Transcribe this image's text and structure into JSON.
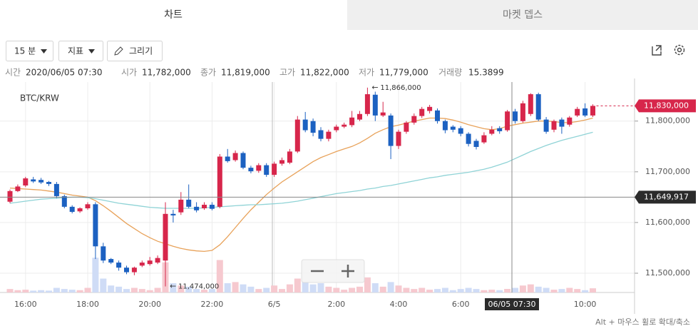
{
  "tabs": {
    "active": "차트",
    "inactive": "마켓 뎁스"
  },
  "toolbar": {
    "interval": "15 분",
    "indicator": "지표",
    "draw": "그리기"
  },
  "info": {
    "items": [
      {
        "label": "시간",
        "value": "2020/06/05 07:30"
      },
      {
        "label": "시가",
        "value": "11,782,000"
      },
      {
        "label": "종가",
        "value": "11,819,000"
      },
      {
        "label": "고가",
        "value": "11,822,000"
      },
      {
        "label": "저가",
        "value": "11,779,000"
      },
      {
        "label": "거래량",
        "value": "15.3899"
      }
    ]
  },
  "footer": "Alt + 마우스 휠로 확대/축소",
  "chart_data": {
    "type": "candlestick",
    "title": "BTC/KRW",
    "categories": [
      null,
      null,
      "16:00",
      null,
      null,
      null,
      null,
      null,
      null,
      null,
      "18:00",
      null,
      null,
      null,
      null,
      null,
      null,
      null,
      "20:00",
      null,
      null,
      null,
      null,
      null,
      null,
      null,
      "22:00",
      null,
      null,
      null,
      null,
      null,
      null,
      null,
      "6/5",
      null,
      null,
      null,
      null,
      null,
      null,
      null,
      "2:00",
      null,
      null,
      null,
      null,
      null,
      null,
      null,
      "4:00",
      null,
      null,
      null,
      null,
      null,
      null,
      null,
      "6:00",
      null,
      null,
      null,
      null,
      null,
      null,
      null,
      null,
      null,
      null,
      null,
      null,
      null,
      null,
      null,
      "10:00",
      null
    ],
    "open": [
      11641000,
      11662000,
      11673000,
      11685000,
      11684000,
      11680000,
      11676000,
      11652000,
      11631000,
      11622000,
      11628000,
      11636000,
      11553000,
      11528000,
      11521000,
      11511000,
      11502000,
      11515000,
      11518000,
      11521000,
      11525000,
      11617000,
      11620000,
      11645000,
      11631000,
      11628000,
      11635000,
      11631000,
      11730000,
      11723000,
      11737000,
      11708000,
      11702000,
      11713000,
      11694000,
      11716000,
      11718000,
      11740000,
      11803000,
      11800000,
      11782000,
      11765000,
      11782000,
      11789000,
      11792000,
      11803000,
      11814000,
      11852000,
      11811000,
      11811000,
      11751000,
      11779000,
      11797000,
      11810000,
      11820000,
      11821000,
      11800000,
      11789000,
      11786000,
      11775000,
      11761000,
      11758000,
      11775000,
      11786000,
      11782000,
      11819000,
      11800000,
      11814000,
      11853000,
      11803000,
      11783000,
      11803000,
      11793000,
      11811000,
      11825000,
      11811000
    ],
    "high": [
      11665000,
      11675000,
      11690000,
      11690000,
      11688000,
      11682000,
      11680000,
      11655000,
      11634000,
      11630000,
      11640000,
      11640000,
      11560000,
      11530000,
      11525000,
      11515000,
      11513000,
      11525000,
      11532000,
      11535000,
      11640000,
      11625000,
      11660000,
      11675000,
      11640000,
      11640000,
      11640000,
      11735000,
      11745000,
      11742000,
      11740000,
      11712000,
      11717000,
      11717000,
      11720000,
      11728000,
      11745000,
      11810000,
      11818000,
      11805000,
      11788000,
      11783000,
      11793000,
      11797000,
      11820000,
      11820000,
      11866000,
      11858000,
      11838000,
      11815000,
      11783000,
      11800000,
      11815000,
      11828000,
      11832000,
      11825000,
      11803000,
      11792000,
      11790000,
      11778000,
      11765000,
      11778000,
      11790000,
      11790000,
      11822000,
      11824000,
      11840000,
      11855000,
      11856000,
      11808000,
      11803000,
      11807000,
      11810000,
      11828000,
      11835000,
      11833000
    ],
    "low": [
      11638000,
      11660000,
      11670000,
      11678000,
      11676000,
      11672000,
      11648000,
      11628000,
      11618000,
      11619000,
      11625000,
      11528000,
      11520000,
      11518000,
      11505000,
      11498000,
      11496000,
      11512000,
      11515000,
      11518000,
      11474000,
      11600000,
      11615000,
      11628000,
      11620000,
      11625000,
      11624000,
      11628000,
      11718000,
      11720000,
      11705000,
      11697000,
      11698000,
      11690000,
      11690000,
      11712000,
      11715000,
      11737000,
      11778000,
      11770000,
      11760000,
      11760000,
      11778000,
      11786000,
      11788000,
      11800000,
      11810000,
      11800000,
      11808000,
      11725000,
      11745000,
      11775000,
      11793000,
      11806000,
      11815000,
      11795000,
      11776000,
      11778000,
      11770000,
      11750000,
      11744000,
      11755000,
      11772000,
      11775000,
      11779000,
      11795000,
      11797000,
      11810000,
      11800000,
      11775000,
      11778000,
      11775000,
      11789000,
      11808000,
      11808000,
      11808000
    ],
    "close": [
      11662000,
      11671000,
      11687000,
      11681000,
      11679000,
      11676000,
      11652000,
      11631000,
      11621000,
      11628000,
      11636000,
      11553000,
      11525000,
      11521000,
      11511000,
      11502000,
      11511000,
      11521000,
      11525000,
      11530000,
      11617000,
      11614000,
      11645000,
      11631000,
      11624000,
      11635000,
      11627000,
      11730000,
      11721000,
      11737000,
      11708000,
      11701000,
      11713000,
      11694000,
      11716000,
      11723000,
      11740000,
      11803000,
      11782000,
      11777000,
      11765000,
      11779000,
      11789000,
      11793000,
      11807000,
      11814000,
      11853000,
      11811000,
      11817000,
      11751000,
      11779000,
      11797000,
      11810000,
      11824000,
      11828000,
      11800000,
      11782000,
      11783000,
      11775000,
      11755000,
      11749000,
      11772000,
      11783000,
      11780000,
      11819000,
      11800000,
      11835000,
      11853000,
      11803000,
      11779000,
      11800000,
      11789000,
      11807000,
      11824000,
      11811000,
      11830000
    ],
    "up_color": "#d7264b",
    "down_color": "#1c61c1",
    "ma_series": [
      {
        "color": "#e8a25a",
        "values": [
          11668000,
          11667000,
          11666000,
          11665000,
          11664000,
          11662000,
          11660000,
          11657000,
          11654000,
          11652000,
          11650000,
          11643000,
          11633000,
          11622000,
          11610000,
          11598000,
          11588000,
          11578000,
          11570000,
          11563000,
          11558000,
          11553000,
          11549000,
          11546000,
          11544000,
          11543000,
          11545000,
          11556000,
          11572000,
          11590000,
          11608000,
          11625000,
          11640000,
          11655000,
          11668000,
          11680000,
          11690000,
          11700000,
          11710000,
          11720000,
          11728000,
          11734000,
          11740000,
          11745000,
          11750000,
          11757000,
          11766000,
          11776000,
          11783000,
          11789000,
          11792000,
          11796000,
          11800000,
          11803000,
          11806000,
          11806000,
          11805000,
          11802000,
          11798000,
          11793000,
          11789000,
          11785000,
          11783000,
          11785000,
          11790000,
          11793000,
          11796000,
          11798000,
          11800000,
          11800000,
          11799000,
          11797000,
          11797000,
          11799000,
          11802000,
          11806000
        ]
      },
      {
        "color": "#8fd3d6",
        "values": [
          11638000,
          11640000,
          11642000,
          11644000,
          11646000,
          11647000,
          11648000,
          11649000,
          11650000,
          11650000,
          11649000,
          11647000,
          11644000,
          11641000,
          11638000,
          11636000,
          11634000,
          11632000,
          11630000,
          11629000,
          11628000,
          11628000,
          11628000,
          11628000,
          11628000,
          11629000,
          11630000,
          11631000,
          11632000,
          11633000,
          11634000,
          11635000,
          11635000,
          11636000,
          11637000,
          11638000,
          11640000,
          11642000,
          11645000,
          11648000,
          11651000,
          11654000,
          11657000,
          11659000,
          11661000,
          11663000,
          11666000,
          11668000,
          11671000,
          11673000,
          11676000,
          11679000,
          11682000,
          11685000,
          11688000,
          11690000,
          11693000,
          11695000,
          11697000,
          11699000,
          11702000,
          11705000,
          11709000,
          11714000,
          11719000,
          11726000,
          11733000,
          11740000,
          11746000,
          11752000,
          11757000,
          11762000,
          11766000,
          11770000,
          11774000,
          11778000
        ]
      }
    ],
    "volume": [
      15,
      10,
      12,
      8,
      10,
      8,
      20,
      15,
      12,
      10,
      20,
      150,
      60,
      30,
      25,
      15,
      20,
      15,
      10,
      20,
      130,
      40,
      30,
      25,
      15,
      12,
      15,
      140,
      40,
      45,
      35,
      25,
      15,
      20,
      30,
      15,
      35,
      60,
      45,
      35,
      40,
      25,
      20,
      12,
      20,
      25,
      65,
      40,
      25,
      45,
      30,
      20,
      15,
      20,
      12,
      15,
      20,
      10,
      15,
      20,
      15,
      10,
      12,
      10,
      15.3899,
      20,
      30,
      35,
      25,
      20,
      12,
      15,
      20,
      15,
      10,
      18
    ],
    "volume_lim": [
      0,
      200
    ],
    "volume_up_color": "#f6c9cf",
    "volume_down_color": "#cfdcf6",
    "ylim": [
      11462000,
      11877000
    ],
    "yticks": [
      {
        "value": 11500000,
        "label": "11,500,000"
      },
      {
        "value": 11600000,
        "label": "11,600,000"
      },
      {
        "value": 11700000,
        "label": "11,700,000"
      },
      {
        "value": 11800000,
        "label": "11,800,000"
      }
    ],
    "grid": true,
    "high_label": "11,866,000",
    "low_label": "11,474,000",
    "current_price": {
      "value": 11830000,
      "label": "11,830,000"
    },
    "crosshair": {
      "x_label": "06/05 07:30",
      "price": {
        "value": 11649917,
        "label": "11,649,917"
      }
    }
  }
}
